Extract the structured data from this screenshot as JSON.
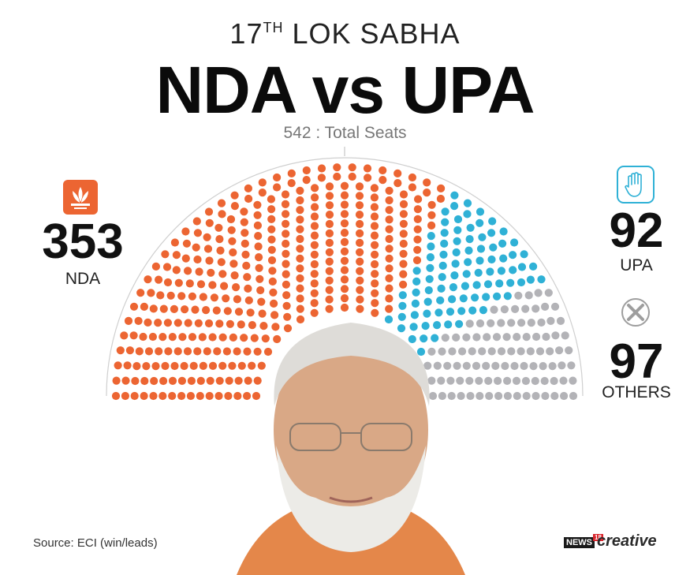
{
  "header": {
    "ordinal": "17",
    "ordinal_suffix": "TH",
    "supertitle": "LOK SABHA",
    "title": "NDA vs UPA",
    "total_label": "542 : Total Seats"
  },
  "chart_data": {
    "type": "parliament",
    "total": 542,
    "series": [
      {
        "name": "NDA",
        "value": 353,
        "color": "#ec6532"
      },
      {
        "name": "UPA",
        "value": 92,
        "color": "#2fb1d6"
      },
      {
        "name": "OTHERS",
        "value": 97,
        "color": "#b3b3b7"
      }
    ]
  },
  "legend": {
    "nda": {
      "count": "353",
      "label": "NDA",
      "icon": "lotus-icon",
      "color": "#ec6532"
    },
    "upa": {
      "count": "92",
      "label": "UPA",
      "icon": "hand-icon",
      "color": "#2fb1d6"
    },
    "others": {
      "count": "97",
      "label": "OTHERS",
      "icon": "cross-icon",
      "color": "#9e9e9e"
    }
  },
  "footer": {
    "source": "Source: ECI (win/leads)",
    "brand_news": "NEWS",
    "brand_num": "18",
    "brand_creative": "creative"
  },
  "portrait": {
    "icon": "leader-portrait"
  }
}
